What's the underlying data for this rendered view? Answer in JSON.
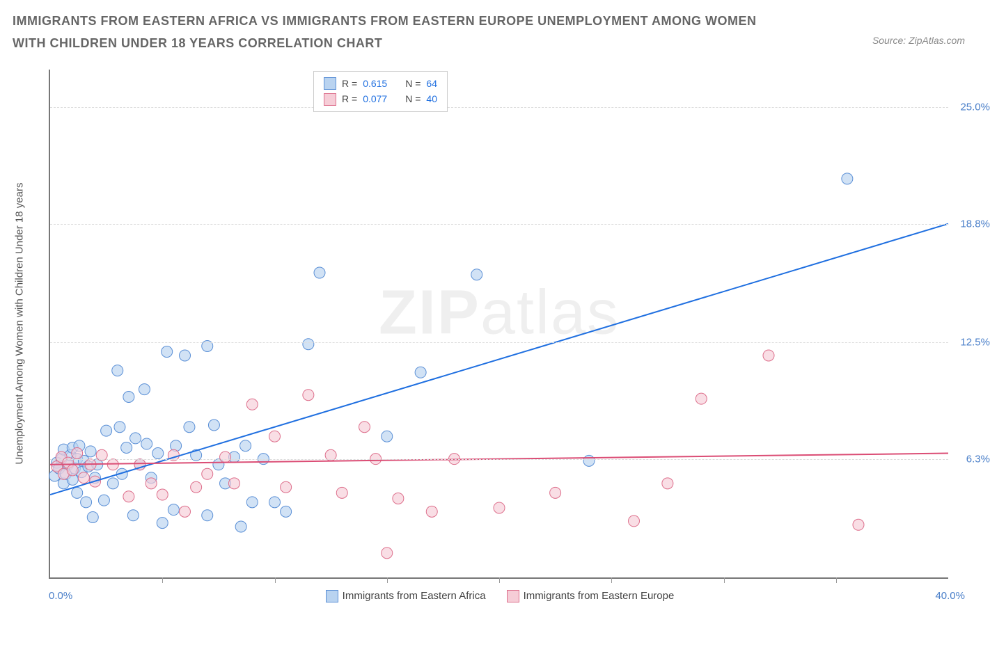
{
  "title": "IMMIGRANTS FROM EASTERN AFRICA VS IMMIGRANTS FROM EASTERN EUROPE UNEMPLOYMENT AMONG WOMEN WITH CHILDREN UNDER 18 YEARS CORRELATION CHART",
  "source": "Source: ZipAtlas.com",
  "watermark_main": "ZIP",
  "watermark_sub": "atlas",
  "chart": {
    "type": "scatter",
    "background_color": "#ffffff",
    "grid_color": "#dddddd",
    "axis_color": "#777777",
    "x_axis": {
      "min": 0.0,
      "max": 40.0,
      "label_min": "0.0%",
      "label_max": "40.0%",
      "label_color": "#4a7fc9",
      "tick_positions_pct": [
        12.5,
        25.0,
        37.5,
        50.0,
        62.5,
        75.0,
        87.5
      ]
    },
    "y_axis": {
      "min": 0.0,
      "max": 27.0,
      "label": "Unemployment Among Women with Children Under 18 years",
      "label_color": "#555555",
      "ticks": [
        {
          "value": 6.3,
          "label": "6.3%"
        },
        {
          "value": 12.5,
          "label": "12.5%"
        },
        {
          "value": 18.8,
          "label": "18.8%"
        },
        {
          "value": 25.0,
          "label": "25.0%"
        }
      ],
      "tick_label_color": "#4a7fc9"
    },
    "legend_top": {
      "rows": [
        {
          "swatch_fill": "#b9d3f0",
          "swatch_border": "#5a8fd6",
          "r_label": "R =",
          "r_value": "0.615",
          "n_label": "N =",
          "n_value": "64"
        },
        {
          "swatch_fill": "#f6cdd7",
          "swatch_border": "#dd6e8b",
          "r_label": "R =",
          "r_value": "0.077",
          "n_label": "N =",
          "n_value": "40"
        }
      ]
    },
    "legend_bottom": {
      "items": [
        {
          "swatch_fill": "#b9d3f0",
          "swatch_border": "#5a8fd6",
          "label": "Immigrants from Eastern Africa"
        },
        {
          "swatch_fill": "#f6cdd7",
          "swatch_border": "#dd6e8b",
          "label": "Immigrants from Eastern Europe"
        }
      ]
    },
    "series": [
      {
        "name": "Immigrants from Eastern Africa",
        "marker_fill": "#b9d3f0",
        "marker_stroke": "#5a8fd6",
        "marker_opacity": 0.65,
        "marker_radius": 8,
        "trend_line": {
          "x1": 0.0,
          "y1": 4.4,
          "x2": 40.0,
          "y2": 18.8,
          "color": "#1f6fe0",
          "width": 2
        },
        "points": [
          [
            0.2,
            5.4
          ],
          [
            0.3,
            6.1
          ],
          [
            0.4,
            5.8
          ],
          [
            0.5,
            6.3
          ],
          [
            0.6,
            5.0
          ],
          [
            0.6,
            6.8
          ],
          [
            0.7,
            5.5
          ],
          [
            0.8,
            6.0
          ],
          [
            0.9,
            6.5
          ],
          [
            1.0,
            5.2
          ],
          [
            1.0,
            6.9
          ],
          [
            1.1,
            5.8
          ],
          [
            1.2,
            4.5
          ],
          [
            1.2,
            6.3
          ],
          [
            1.3,
            7.0
          ],
          [
            1.4,
            5.6
          ],
          [
            1.5,
            6.2
          ],
          [
            1.6,
            4.0
          ],
          [
            1.7,
            5.9
          ],
          [
            1.8,
            6.7
          ],
          [
            1.9,
            3.2
          ],
          [
            2.0,
            5.3
          ],
          [
            2.1,
            6.0
          ],
          [
            2.4,
            4.1
          ],
          [
            2.5,
            7.8
          ],
          [
            2.8,
            5.0
          ],
          [
            3.0,
            11.0
          ],
          [
            3.1,
            8.0
          ],
          [
            3.2,
            5.5
          ],
          [
            3.4,
            6.9
          ],
          [
            3.5,
            9.6
          ],
          [
            3.7,
            3.3
          ],
          [
            3.8,
            7.4
          ],
          [
            4.0,
            6.0
          ],
          [
            4.2,
            10.0
          ],
          [
            4.3,
            7.1
          ],
          [
            4.5,
            5.3
          ],
          [
            4.8,
            6.6
          ],
          [
            5.0,
            2.9
          ],
          [
            5.2,
            12.0
          ],
          [
            5.5,
            3.6
          ],
          [
            5.6,
            7.0
          ],
          [
            6.0,
            11.8
          ],
          [
            6.2,
            8.0
          ],
          [
            6.5,
            6.5
          ],
          [
            7.0,
            3.3
          ],
          [
            7.0,
            12.3
          ],
          [
            7.3,
            8.1
          ],
          [
            7.5,
            6.0
          ],
          [
            7.8,
            5.0
          ],
          [
            8.2,
            6.4
          ],
          [
            8.5,
            2.7
          ],
          [
            8.7,
            7.0
          ],
          [
            9.0,
            4.0
          ],
          [
            9.5,
            6.3
          ],
          [
            10.0,
            4.0
          ],
          [
            10.5,
            3.5
          ],
          [
            11.5,
            12.4
          ],
          [
            12.0,
            16.2
          ],
          [
            15.0,
            7.5
          ],
          [
            16.5,
            10.9
          ],
          [
            19.0,
            16.1
          ],
          [
            24.0,
            6.2
          ],
          [
            35.5,
            21.2
          ]
        ]
      },
      {
        "name": "Immigrants from Eastern Europe",
        "marker_fill": "#f6cdd7",
        "marker_stroke": "#dd6e8b",
        "marker_opacity": 0.65,
        "marker_radius": 8,
        "trend_line": {
          "x1": 0.0,
          "y1": 6.0,
          "x2": 40.0,
          "y2": 6.6,
          "color": "#db4d75",
          "width": 2
        },
        "points": [
          [
            0.3,
            5.9
          ],
          [
            0.5,
            6.4
          ],
          [
            0.6,
            5.5
          ],
          [
            0.8,
            6.1
          ],
          [
            1.0,
            5.7
          ],
          [
            1.2,
            6.6
          ],
          [
            1.5,
            5.3
          ],
          [
            1.8,
            6.0
          ],
          [
            2.0,
            5.1
          ],
          [
            2.3,
            6.5
          ],
          [
            2.8,
            6.0
          ],
          [
            3.5,
            4.3
          ],
          [
            4.0,
            6.0
          ],
          [
            4.5,
            5.0
          ],
          [
            5.0,
            4.4
          ],
          [
            5.5,
            6.5
          ],
          [
            6.0,
            3.5
          ],
          [
            6.5,
            4.8
          ],
          [
            7.0,
            5.5
          ],
          [
            7.8,
            6.4
          ],
          [
            8.2,
            5.0
          ],
          [
            9.0,
            9.2
          ],
          [
            10.0,
            7.5
          ],
          [
            10.5,
            4.8
          ],
          [
            11.5,
            9.7
          ],
          [
            12.5,
            6.5
          ],
          [
            13.0,
            4.5
          ],
          [
            14.0,
            8.0
          ],
          [
            14.5,
            6.3
          ],
          [
            15.0,
            1.3
          ],
          [
            15.5,
            4.2
          ],
          [
            17.0,
            3.5
          ],
          [
            18.0,
            6.3
          ],
          [
            20.0,
            3.7
          ],
          [
            22.5,
            4.5
          ],
          [
            26.0,
            3.0
          ],
          [
            27.5,
            5.0
          ],
          [
            29.0,
            9.5
          ],
          [
            32.0,
            11.8
          ],
          [
            36.0,
            2.8
          ]
        ]
      }
    ]
  }
}
